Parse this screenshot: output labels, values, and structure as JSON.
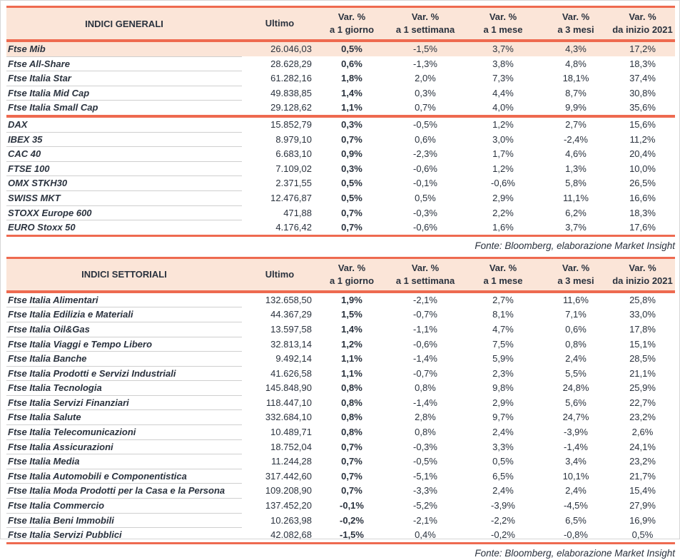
{
  "page": {
    "colors": {
      "accent": "#ee6a50",
      "header_bg": "#fbe5d8",
      "highlight_row_bg": "#fbe5d8",
      "text": "#2a323e",
      "row_separator": "#cfcfcf"
    }
  },
  "columns": [
    {
      "line1": "Ultimo",
      "line2": ""
    },
    {
      "line1": "Var. %",
      "line2": "a 1 giorno"
    },
    {
      "line1": "Var. %",
      "line2": "a 1 settimana"
    },
    {
      "line1": "Var. %",
      "line2": "a 1 mese"
    },
    {
      "line1": "Var. %",
      "line2": "a 3 mesi"
    },
    {
      "line1": "Var. %",
      "line2": "da inizio 2021"
    }
  ],
  "tables": [
    {
      "title": "INDICI GENERALI",
      "source": "Fonte: Bloomberg, elaborazione Market Insight",
      "groups": [
        {
          "rows": [
            {
              "name": "Ftse Mib",
              "ultimo": "26.046,03",
              "d1": "0,5%",
              "w1": "-1,5%",
              "m1": "3,7%",
              "m3": "4,3%",
              "ytd": "17,2%",
              "highlight": true
            },
            {
              "name": "Ftse All-Share",
              "ultimo": "28.628,29",
              "d1": "0,6%",
              "w1": "-1,3%",
              "m1": "3,8%",
              "m3": "4,8%",
              "ytd": "18,3%"
            },
            {
              "name": "Ftse Italia Star",
              "ultimo": "61.282,16",
              "d1": "1,8%",
              "w1": "2,0%",
              "m1": "7,3%",
              "m3": "18,1%",
              "ytd": "37,4%"
            },
            {
              "name": "Ftse Italia Mid Cap",
              "ultimo": "49.838,85",
              "d1": "1,4%",
              "w1": "0,3%",
              "m1": "4,4%",
              "m3": "8,7%",
              "ytd": "30,8%"
            },
            {
              "name": "Ftse Italia Small Cap",
              "ultimo": "29.128,62",
              "d1": "1,1%",
              "w1": "0,7%",
              "m1": "4,0%",
              "m3": "9,9%",
              "ytd": "35,6%"
            }
          ]
        },
        {
          "rows": [
            {
              "name": "DAX",
              "ultimo": "15.852,79",
              "d1": "0,3%",
              "w1": "-0,5%",
              "m1": "1,2%",
              "m3": "2,7%",
              "ytd": "15,6%"
            },
            {
              "name": "IBEX 35",
              "ultimo": "8.979,10",
              "d1": "0,7%",
              "w1": "0,6%",
              "m1": "3,0%",
              "m3": "-2,4%",
              "ytd": "11,2%"
            },
            {
              "name": "CAC 40",
              "ultimo": "6.683,10",
              "d1": "0,9%",
              "w1": "-2,3%",
              "m1": "1,7%",
              "m3": "4,6%",
              "ytd": "20,4%"
            },
            {
              "name": "FTSE 100",
              "ultimo": "7.109,02",
              "d1": "0,3%",
              "w1": "-0,6%",
              "m1": "1,2%",
              "m3": "1,3%",
              "ytd": "10,0%"
            },
            {
              "name": "OMX STKH30",
              "ultimo": "2.371,55",
              "d1": "0,5%",
              "w1": "-0,1%",
              "m1": "-0,6%",
              "m3": "5,8%",
              "ytd": "26,5%"
            },
            {
              "name": "SWISS MKT",
              "ultimo": "12.476,87",
              "d1": "0,5%",
              "w1": "0,5%",
              "m1": "2,9%",
              "m3": "11,1%",
              "ytd": "16,6%"
            },
            {
              "name": "STOXX Europe 600",
              "ultimo": "471,88",
              "d1": "0,7%",
              "w1": "-0,3%",
              "m1": "2,2%",
              "m3": "6,2%",
              "ytd": "18,3%"
            },
            {
              "name": "EURO Stoxx 50",
              "ultimo": "4.176,42",
              "d1": "0,7%",
              "w1": "-0,6%",
              "m1": "1,6%",
              "m3": "3,7%",
              "ytd": "17,6%"
            }
          ]
        }
      ]
    },
    {
      "title": "INDICI SETTORIALI",
      "source": "Fonte: Bloomberg, elaborazione Market Insight",
      "groups": [
        {
          "rows": [
            {
              "name": "Ftse Italia Alimentari",
              "ultimo": "132.658,50",
              "d1": "1,9%",
              "w1": "-2,1%",
              "m1": "2,7%",
              "m3": "11,6%",
              "ytd": "25,8%"
            },
            {
              "name": "Ftse Italia Edilizia e Materiali",
              "ultimo": "44.367,29",
              "d1": "1,5%",
              "w1": "-0,7%",
              "m1": "8,1%",
              "m3": "7,1%",
              "ytd": "33,0%"
            },
            {
              "name": "Ftse Italia Oil&Gas",
              "ultimo": "13.597,58",
              "d1": "1,4%",
              "w1": "-1,1%",
              "m1": "4,7%",
              "m3": "0,6%",
              "ytd": "17,8%"
            },
            {
              "name": "Ftse Italia Viaggi e Tempo Libero",
              "ultimo": "32.813,14",
              "d1": "1,2%",
              "w1": "-0,6%",
              "m1": "7,5%",
              "m3": "0,8%",
              "ytd": "15,1%"
            },
            {
              "name": "Ftse Italia Banche",
              "ultimo": "9.492,14",
              "d1": "1,1%",
              "w1": "-1,4%",
              "m1": "5,9%",
              "m3": "2,4%",
              "ytd": "28,5%"
            },
            {
              "name": "Ftse Italia Prodotti e Servizi Industriali",
              "ultimo": "41.626,58",
              "d1": "1,1%",
              "w1": "-0,7%",
              "m1": "2,3%",
              "m3": "5,5%",
              "ytd": "21,1%"
            },
            {
              "name": "Ftse Italia Tecnologia",
              "ultimo": "145.848,90",
              "d1": "0,8%",
              "w1": "0,8%",
              "m1": "9,8%",
              "m3": "24,8%",
              "ytd": "25,9%"
            },
            {
              "name": "Ftse Italia Servizi Finanziari",
              "ultimo": "118.447,10",
              "d1": "0,8%",
              "w1": "-1,4%",
              "m1": "2,9%",
              "m3": "5,6%",
              "ytd": "22,7%"
            },
            {
              "name": "Ftse Italia Salute",
              "ultimo": "332.684,10",
              "d1": "0,8%",
              "w1": "2,8%",
              "m1": "9,7%",
              "m3": "24,7%",
              "ytd": "23,2%"
            },
            {
              "name": "Ftse Italia Telecomunicazioni",
              "ultimo": "10.489,71",
              "d1": "0,8%",
              "w1": "0,8%",
              "m1": "2,4%",
              "m3": "-3,9%",
              "ytd": "2,6%"
            },
            {
              "name": "Ftse Italia Assicurazioni",
              "ultimo": "18.752,04",
              "d1": "0,7%",
              "w1": "-0,3%",
              "m1": "3,3%",
              "m3": "-1,4%",
              "ytd": "24,1%"
            },
            {
              "name": "Ftse Italia Media",
              "ultimo": "11.244,28",
              "d1": "0,7%",
              "w1": "-0,5%",
              "m1": "0,5%",
              "m3": "3,4%",
              "ytd": "23,2%"
            },
            {
              "name": "Ftse Italia Automobili e Componentistica",
              "ultimo": "317.442,60",
              "d1": "0,7%",
              "w1": "-5,1%",
              "m1": "6,5%",
              "m3": "10,1%",
              "ytd": "21,7%"
            },
            {
              "name": "Ftse Italia Moda Prodotti per la Casa e la Persona",
              "ultimo": "109.208,90",
              "d1": "0,7%",
              "w1": "-3,3%",
              "m1": "2,4%",
              "m3": "2,4%",
              "ytd": "15,4%"
            },
            {
              "name": "Ftse Italia Commercio",
              "ultimo": "137.452,20",
              "d1": "-0,1%",
              "w1": "-5,2%",
              "m1": "-3,9%",
              "m3": "-4,5%",
              "ytd": "27,9%"
            },
            {
              "name": "Ftse Italia Beni Immobili",
              "ultimo": "10.263,98",
              "d1": "-0,2%",
              "w1": "-2,1%",
              "m1": "-2,2%",
              "m3": "6,5%",
              "ytd": "16,9%"
            },
            {
              "name": "Ftse Italia Servizi Pubblici",
              "ultimo": "42.082,68",
              "d1": "-1,5%",
              "w1": "0,4%",
              "m1": "-0,2%",
              "m3": "-0,8%",
              "ytd": "0,5%"
            }
          ]
        }
      ]
    }
  ]
}
